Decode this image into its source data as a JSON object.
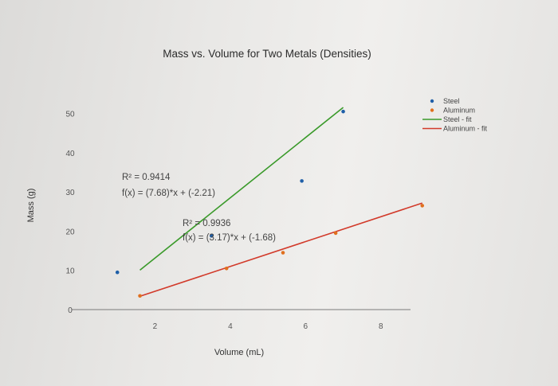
{
  "chart_data": {
    "type": "scatter",
    "title": "Mass vs. Volume for Two Metals (Densities)",
    "xlabel": "Volume (mL)",
    "ylabel": "Mass (g)",
    "xlim": [
      0,
      9
    ],
    "ylim": [
      0,
      55
    ],
    "xticks": [
      "2",
      "4",
      "6",
      "8"
    ],
    "yticks": [
      "0",
      "10",
      "20",
      "30",
      "40",
      "50"
    ],
    "grid": false,
    "legend_position": "top-right",
    "series": [
      {
        "name": "Steel",
        "kind": "points",
        "color": "#1f5fa8",
        "points": [
          [
            1.0,
            9.5
          ],
          [
            3.5,
            18.8
          ],
          [
            5.9,
            32.8
          ],
          [
            7.0,
            50.5
          ]
        ]
      },
      {
        "name": "Aluminum",
        "kind": "points",
        "color": "#e0701f",
        "points": [
          [
            1.6,
            3.5
          ],
          [
            3.9,
            10.5
          ],
          [
            5.4,
            14.5
          ],
          [
            6.8,
            19.5
          ],
          [
            9.1,
            26.5
          ]
        ]
      },
      {
        "name": "Steel - fit",
        "kind": "fit",
        "color": "#3a9a2a",
        "slope": 7.68,
        "intercept": -2.21,
        "x_range": [
          1.6,
          7.0
        ]
      },
      {
        "name": "Aluminum - fit",
        "kind": "fit",
        "color": "#d23a2a",
        "slope": 3.17,
        "intercept": -1.68,
        "x_range": [
          1.6,
          9.1
        ]
      }
    ],
    "annotations": [
      {
        "text": "R² = 0.9414",
        "series": "Steel - fit"
      },
      {
        "text": "f(x) = (7.68)*x + (-2.21)",
        "series": "Steel - fit"
      },
      {
        "text": "R² = 0.9936",
        "series": "Aluminum - fit"
      },
      {
        "text": "f(x) = (3.17)*x + (-1.68)",
        "series": "Aluminum - fit"
      }
    ]
  }
}
